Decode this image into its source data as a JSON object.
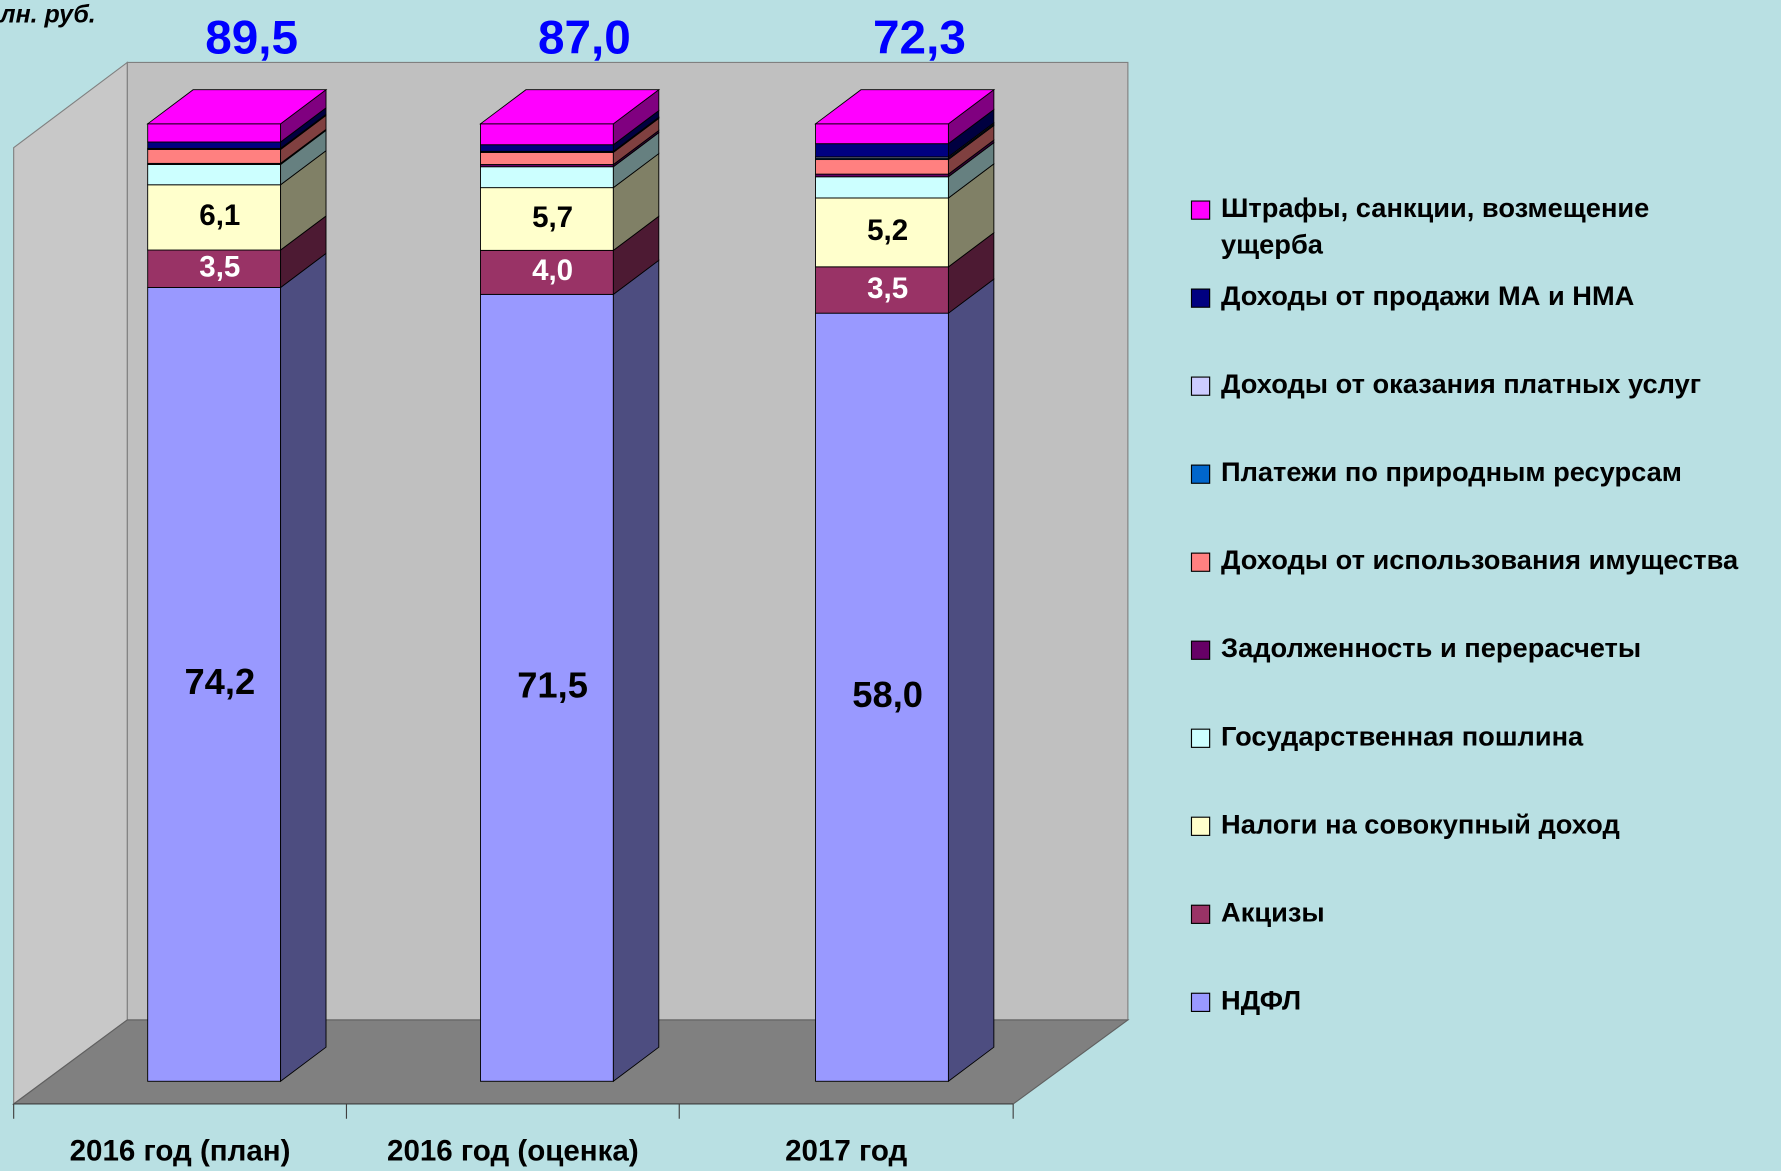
{
  "chart_data": {
    "type": "bar3d_stacked_percent",
    "unit_label": "лн. руб.",
    "categories": [
      "2016 год (план)",
      "2016 год (оценка)",
      "2017 год"
    ],
    "totals": [
      89.5,
      87.0,
      72.3
    ],
    "total_labels": [
      "89,5",
      "87,0",
      "72,3"
    ],
    "series": [
      {
        "name": "НДФЛ",
        "color": "#9999ff",
        "values": [
          74.2,
          71.5,
          58.0
        ],
        "value_labels": [
          "74,2",
          "71,5",
          "58,0"
        ]
      },
      {
        "name": "Акцизы",
        "color": "#993366",
        "values": [
          3.5,
          4.0,
          3.5
        ],
        "value_labels": [
          "3,5",
          "4,0",
          "3,5"
        ]
      },
      {
        "name": "Налоги на совокупный доход",
        "color": "#ffffcc",
        "values": [
          6.1,
          5.7,
          5.2
        ],
        "value_labels": [
          "6,1",
          "5,7",
          "5,2"
        ]
      },
      {
        "name": "Государственная пошлина",
        "color": "#ccffff",
        "values": [
          1.9,
          1.9,
          1.6
        ]
      },
      {
        "name": "Задолженность и перерасчеты",
        "color": "#660066",
        "values": [
          0.1,
          0.2,
          0.2
        ]
      },
      {
        "name": "Доходы от использования имущества",
        "color": "#ff8080",
        "values": [
          1.3,
          1.1,
          1.1
        ]
      },
      {
        "name": "Платежи по природным ресурсам",
        "color": "#0066cc",
        "values": [
          0.05,
          0.05,
          0.1
        ]
      },
      {
        "name": "Доходы от оказания платных услуг",
        "color": "#ccccff",
        "values": [
          0.05,
          0.05,
          0.1
        ]
      },
      {
        "name": "Доходы от продажи МА и НМА",
        "color": "#000080",
        "values": [
          0.6,
          0.6,
          1.0
        ]
      },
      {
        "name": "Штрафы, санкции, возмещение ущерба",
        "color": "#ff00ff",
        "values": [
          1.7,
          1.9,
          1.5
        ]
      }
    ]
  }
}
